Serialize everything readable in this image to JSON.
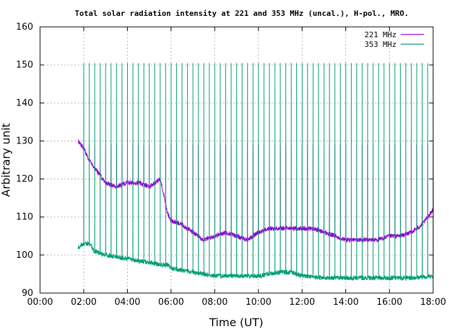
{
  "chart_data": {
    "type": "line",
    "title": "Total solar radiation intensity at 221 and 353 MHz (uncal.), H-pol., MRO.",
    "xlabel": "Time (UT)",
    "ylabel": "Arbitrary unit",
    "xlim": [
      "00:00",
      "18:00"
    ],
    "ylim": [
      90,
      160
    ],
    "x_tick_labels": [
      "00:00",
      "02:00",
      "04:00",
      "06:00",
      "08:00",
      "10:00",
      "12:00",
      "14:00",
      "16:00",
      "18:00"
    ],
    "y_tick_labels": [
      "90",
      "100",
      "110",
      "120",
      "130",
      "140",
      "150",
      "160"
    ],
    "grid": true,
    "legend_position": "top-right",
    "calibration_spike_interval_minutes": 15,
    "series": [
      {
        "name": "221 MHz",
        "color": "#9400d3",
        "x": [
          "01:45",
          "02:00",
          "02:15",
          "02:30",
          "02:45",
          "03:00",
          "03:30",
          "04:00",
          "04:30",
          "05:00",
          "05:30",
          "05:40",
          "05:50",
          "06:00",
          "06:30",
          "07:00",
          "07:30",
          "08:00",
          "08:30",
          "09:00",
          "09:30",
          "10:00",
          "10:30",
          "11:00",
          "11:30",
          "12:00",
          "12:30",
          "13:00",
          "13:30",
          "14:00",
          "14:30",
          "15:00",
          "15:30",
          "16:00",
          "16:30",
          "17:00",
          "17:30",
          "18:00"
        ],
        "y": [
          130,
          128,
          125,
          123,
          121,
          119,
          118,
          119,
          119,
          118,
          120,
          116,
          111,
          109,
          108,
          106,
          104,
          105,
          106,
          105,
          104,
          106,
          107,
          107,
          107,
          107,
          107,
          106,
          105,
          104,
          104,
          104,
          104,
          105,
          105,
          106,
          108,
          112
        ],
        "spike_peak_y": 129
      },
      {
        "name": "353 MHz",
        "color": "#009e73",
        "x": [
          "01:45",
          "02:00",
          "02:15",
          "02:30",
          "03:00",
          "03:30",
          "04:00",
          "04:30",
          "05:00",
          "05:30",
          "05:50",
          "06:00",
          "06:30",
          "07:00",
          "07:30",
          "08:00",
          "09:00",
          "10:00",
          "11:00",
          "11:30",
          "12:00",
          "13:00",
          "14:00",
          "15:00",
          "16:00",
          "17:00",
          "18:00"
        ],
        "y": [
          102,
          103,
          103,
          101,
          100,
          99.5,
          99,
          98.5,
          98,
          97.5,
          97.5,
          96.5,
          96,
          95.5,
          95,
          94.5,
          94.5,
          94.5,
          95.5,
          95.5,
          94.5,
          94,
          94,
          94,
          94,
          94,
          94.5
        ],
        "spike_peak_y": 150.5
      }
    ]
  }
}
